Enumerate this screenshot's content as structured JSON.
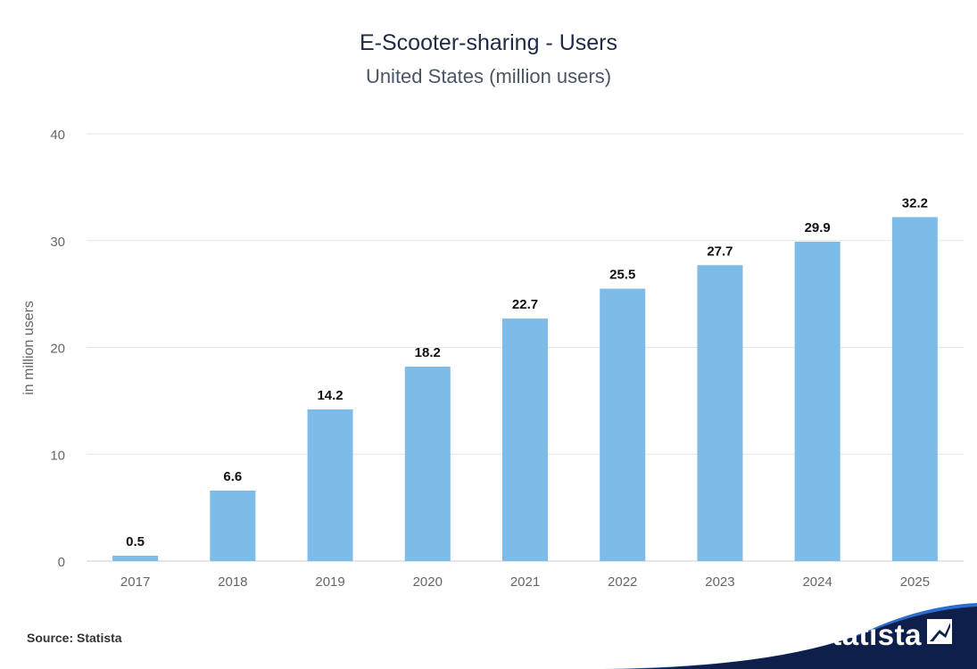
{
  "chart_data": {
    "type": "bar",
    "title": "E-Scooter-sharing - Users",
    "subtitle": "United States (million users)",
    "xlabel": "",
    "ylabel": "in million users",
    "categories": [
      "2017",
      "2018",
      "2019",
      "2020",
      "2021",
      "2022",
      "2023",
      "2024",
      "2025"
    ],
    "values": [
      0.5,
      6.6,
      14.2,
      18.2,
      22.7,
      25.5,
      27.7,
      29.9,
      32.2
    ],
    "data_labels": [
      "0.5",
      "6.6",
      "14.2",
      "18.2",
      "22.7",
      "25.5",
      "27.7",
      "29.9",
      "32.2"
    ],
    "ylim": [
      0,
      40
    ],
    "yticks": [
      0,
      10,
      20,
      30,
      40
    ],
    "grid": true,
    "bar_color": "#7dbbe8"
  },
  "footer": {
    "source": "Source: Statista",
    "brand": "statista"
  },
  "colors": {
    "brand_dark": "#0d1f4a",
    "brand_accent": "#2b6dd1"
  }
}
